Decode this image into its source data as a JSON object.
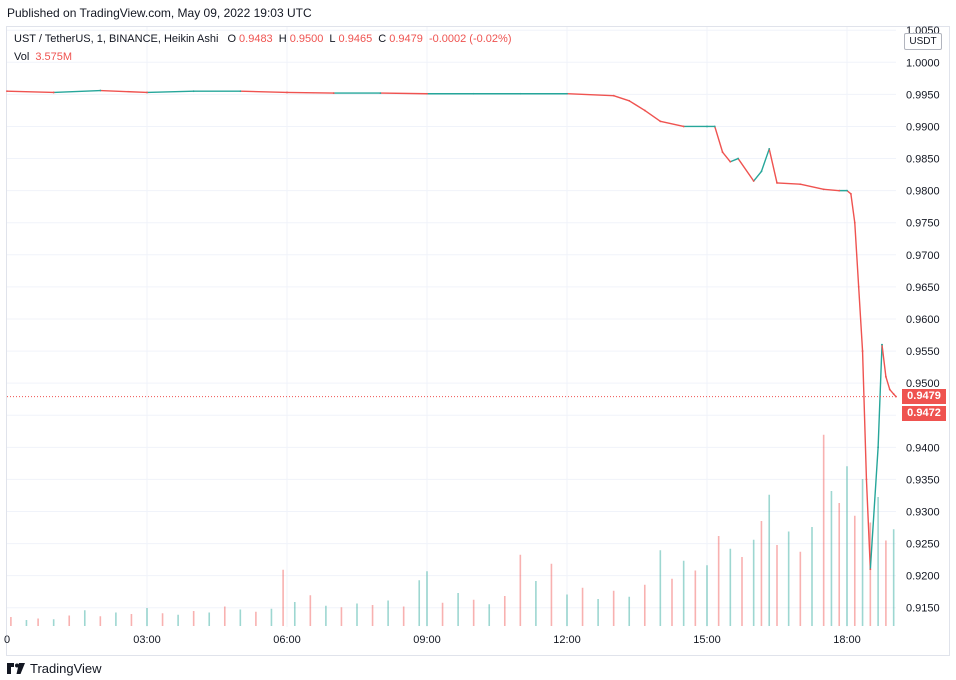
{
  "published_text": "Published on TradingView.com, May 09, 2022 19:03 UTC",
  "footer_brand": "TradingView",
  "legend": {
    "symbol": "UST / TetherUS, 1, BINANCE, Heikin Ashi",
    "o_label": "O",
    "o_value": "0.9483",
    "h_label": "H",
    "h_value": "0.9500",
    "l_label": "L",
    "l_value": "0.9465",
    "c_label": "C",
    "c_value": "0.9479",
    "change": "-0.0002 (-0.02%)",
    "vol_label": "Vol",
    "vol_value": "3.575M"
  },
  "currency_badge": "USDT",
  "price_badges": [
    "0.9479",
    "0.9472"
  ],
  "colors": {
    "up": "#26a69a",
    "down": "#ef5350",
    "grid": "#f0f3fa",
    "text": "#131722"
  },
  "chart_data": {
    "type": "line",
    "series": [
      {
        "x": [
          "00:00",
          "01:00",
          "02:00",
          "03:00",
          "04:00",
          "05:00",
          "06:00",
          "07:00",
          "08:00",
          "09:00",
          "10:00",
          "11:00",
          "12:00",
          "13:00",
          "13:20",
          "13:40",
          "14:00",
          "14:30",
          "15:00",
          "15:10",
          "15:20",
          "15:30",
          "15:40",
          "16:00",
          "16:10",
          "16:20",
          "16:30",
          "17:00",
          "17:30",
          "17:50",
          "18:00",
          "18:05",
          "18:10",
          "18:15",
          "18:20",
          "18:25",
          "18:30",
          "18:40",
          "18:45",
          "18:50",
          "18:55",
          "19:00",
          "19:03"
        ],
        "values": [
          0.9955,
          0.9953,
          0.9956,
          0.9953,
          0.9955,
          0.9955,
          0.9953,
          0.9952,
          0.9952,
          0.9951,
          0.9951,
          0.9951,
          0.9951,
          0.9948,
          0.994,
          0.9925,
          0.9908,
          0.99,
          0.99,
          0.99,
          0.986,
          0.9845,
          0.985,
          0.9815,
          0.983,
          0.9865,
          0.9812,
          0.981,
          0.9802,
          0.98,
          0.98,
          0.9795,
          0.975,
          0.965,
          0.955,
          0.935,
          0.921,
          0.94,
          0.956,
          0.951,
          0.949,
          0.9483,
          0.9479
        ]
      }
    ],
    "last_price": 0.9479,
    "y_ticks": [
      "1.0050",
      "1.0000",
      "0.9950",
      "0.9900",
      "0.9850",
      "0.9800",
      "0.9750",
      "0.9700",
      "0.9650",
      "0.9600",
      "0.9550",
      "0.9500",
      "0.9450",
      "0.9400",
      "0.9350",
      "0.9300",
      "0.9250",
      "0.9200",
      "0.9150"
    ],
    "x_ticks": [
      "03:00",
      "06:00",
      "09:00",
      "12:00",
      "15:00",
      "18:00"
    ],
    "x_tick_left_stub": "0",
    "ylim": [
      0.912,
      1.0055
    ],
    "volume": {
      "max_value": 20,
      "bars": [
        {
          "x": "00:05",
          "v": 1.2,
          "up": false
        },
        {
          "x": "00:25",
          "v": 0.8,
          "up": true
        },
        {
          "x": "00:40",
          "v": 1.0,
          "up": false
        },
        {
          "x": "01:00",
          "v": 0.9,
          "up": true
        },
        {
          "x": "01:20",
          "v": 1.4,
          "up": false
        },
        {
          "x": "01:40",
          "v": 2.1,
          "up": true
        },
        {
          "x": "02:00",
          "v": 1.3,
          "up": false
        },
        {
          "x": "02:20",
          "v": 1.8,
          "up": true
        },
        {
          "x": "02:40",
          "v": 1.6,
          "up": false
        },
        {
          "x": "03:00",
          "v": 2.4,
          "up": true
        },
        {
          "x": "03:20",
          "v": 1.7,
          "up": false
        },
        {
          "x": "03:40",
          "v": 1.5,
          "up": true
        },
        {
          "x": "04:00",
          "v": 2.0,
          "up": false
        },
        {
          "x": "04:20",
          "v": 1.8,
          "up": true
        },
        {
          "x": "04:40",
          "v": 2.6,
          "up": false
        },
        {
          "x": "05:00",
          "v": 2.2,
          "up": true
        },
        {
          "x": "05:20",
          "v": 1.9,
          "up": false
        },
        {
          "x": "05:40",
          "v": 2.3,
          "up": true
        },
        {
          "x": "05:55",
          "v": 7.5,
          "up": false
        },
        {
          "x": "06:10",
          "v": 3.2,
          "up": true
        },
        {
          "x": "06:30",
          "v": 4.1,
          "up": false
        },
        {
          "x": "06:50",
          "v": 2.7,
          "up": true
        },
        {
          "x": "07:10",
          "v": 2.5,
          "up": false
        },
        {
          "x": "07:30",
          "v": 3.0,
          "up": true
        },
        {
          "x": "07:50",
          "v": 2.8,
          "up": false
        },
        {
          "x": "08:10",
          "v": 3.4,
          "up": true
        },
        {
          "x": "08:30",
          "v": 2.6,
          "up": false
        },
        {
          "x": "08:50",
          "v": 6.1,
          "up": true
        },
        {
          "x": "09:00",
          "v": 7.3,
          "up": true
        },
        {
          "x": "09:20",
          "v": 3.1,
          "up": false
        },
        {
          "x": "09:40",
          "v": 4.4,
          "up": true
        },
        {
          "x": "10:00",
          "v": 3.5,
          "up": false
        },
        {
          "x": "10:20",
          "v": 2.9,
          "up": true
        },
        {
          "x": "10:40",
          "v": 4.0,
          "up": false
        },
        {
          "x": "11:00",
          "v": 9.5,
          "up": false
        },
        {
          "x": "11:20",
          "v": 6.0,
          "up": true
        },
        {
          "x": "11:40",
          "v": 8.3,
          "up": false
        },
        {
          "x": "12:00",
          "v": 4.2,
          "up": true
        },
        {
          "x": "12:20",
          "v": 5.1,
          "up": false
        },
        {
          "x": "12:40",
          "v": 3.6,
          "up": true
        },
        {
          "x": "13:00",
          "v": 4.7,
          "up": false
        },
        {
          "x": "13:20",
          "v": 3.9,
          "up": true
        },
        {
          "x": "13:40",
          "v": 5.5,
          "up": false
        },
        {
          "x": "14:00",
          "v": 10.1,
          "up": true
        },
        {
          "x": "14:15",
          "v": 6.3,
          "up": false
        },
        {
          "x": "14:30",
          "v": 8.7,
          "up": true
        },
        {
          "x": "14:45",
          "v": 7.4,
          "up": false
        },
        {
          "x": "15:00",
          "v": 8.1,
          "up": true
        },
        {
          "x": "15:15",
          "v": 12.0,
          "up": false
        },
        {
          "x": "15:30",
          "v": 10.3,
          "up": true
        },
        {
          "x": "15:45",
          "v": 9.2,
          "up": false
        },
        {
          "x": "16:00",
          "v": 11.5,
          "up": true
        },
        {
          "x": "16:10",
          "v": 14.0,
          "up": false
        },
        {
          "x": "16:20",
          "v": 17.5,
          "up": true
        },
        {
          "x": "16:30",
          "v": 10.8,
          "up": false
        },
        {
          "x": "16:45",
          "v": 12.6,
          "up": true
        },
        {
          "x": "17:00",
          "v": 9.9,
          "up": false
        },
        {
          "x": "17:15",
          "v": 13.2,
          "up": true
        },
        {
          "x": "17:30",
          "v": 25.5,
          "up": false
        },
        {
          "x": "17:40",
          "v": 18.0,
          "up": true
        },
        {
          "x": "17:50",
          "v": 16.4,
          "up": false
        },
        {
          "x": "18:00",
          "v": 21.3,
          "up": true
        },
        {
          "x": "18:10",
          "v": 14.7,
          "up": false
        },
        {
          "x": "18:20",
          "v": 19.6,
          "up": true
        },
        {
          "x": "18:30",
          "v": 13.8,
          "up": false
        },
        {
          "x": "18:40",
          "v": 17.2,
          "up": true
        },
        {
          "x": "18:50",
          "v": 11.4,
          "up": false
        },
        {
          "x": "19:00",
          "v": 12.9,
          "up": true
        }
      ]
    }
  }
}
